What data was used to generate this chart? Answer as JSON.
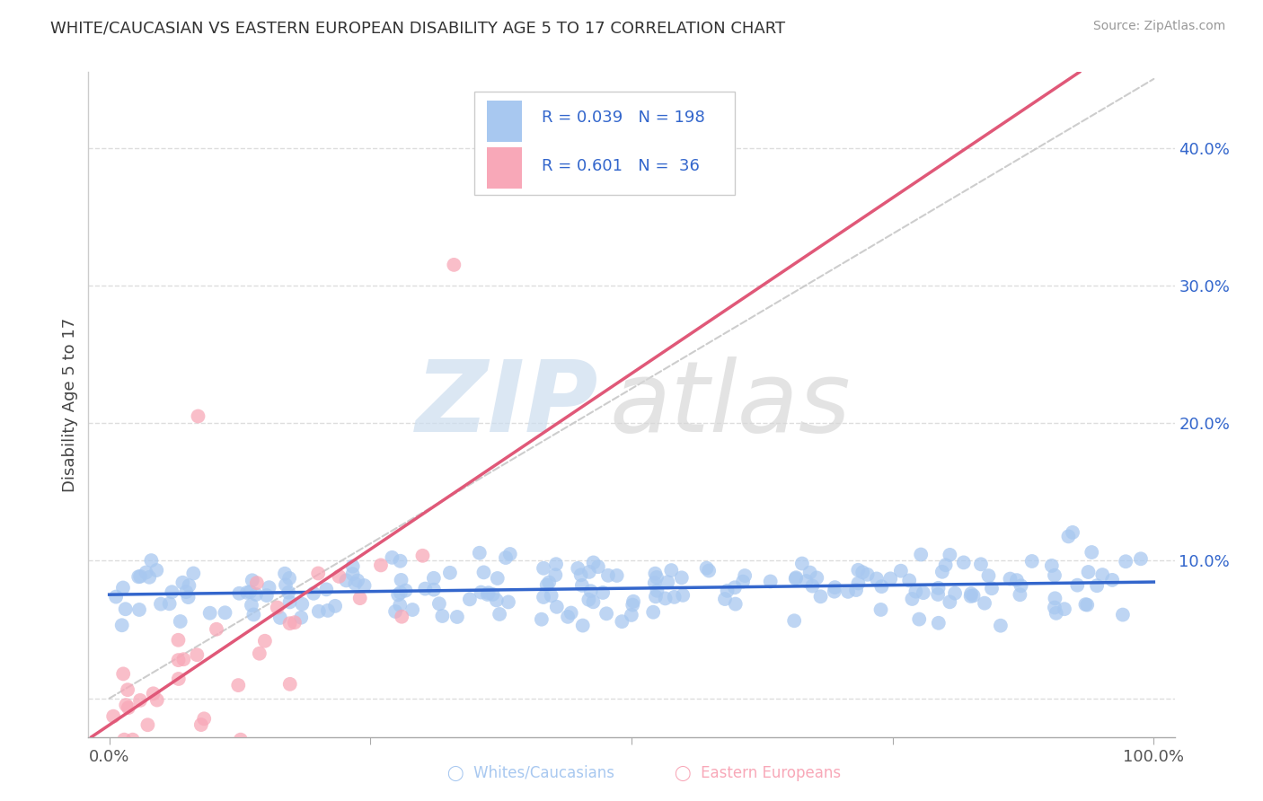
{
  "title": "WHITE/CAUCASIAN VS EASTERN EUROPEAN DISABILITY AGE 5 TO 17 CORRELATION CHART",
  "source": "Source: ZipAtlas.com",
  "ylabel": "Disability Age 5 to 17",
  "R1": 0.039,
  "N1": 198,
  "R2": 0.601,
  "N2": 36,
  "color1": "#a8c8f0",
  "color2": "#f8a8b8",
  "line_color1": "#3366cc",
  "line_color2": "#e05878",
  "ref_line_color": "#c8c8c8",
  "xmin": -0.02,
  "xmax": 1.02,
  "ymin": -0.028,
  "ymax": 0.455,
  "ytick_vals": [
    0.0,
    0.1,
    0.2,
    0.3,
    0.4
  ],
  "ytick_labels": [
    "",
    "10.0%",
    "20.0%",
    "30.0%",
    "40.0%"
  ],
  "background_color": "#ffffff",
  "grid_color": "#dddddd",
  "title_color": "#333333",
  "source_color": "#999999",
  "legend_label1": "Whites/Caucasians",
  "legend_label2": "Eastern Europeans"
}
